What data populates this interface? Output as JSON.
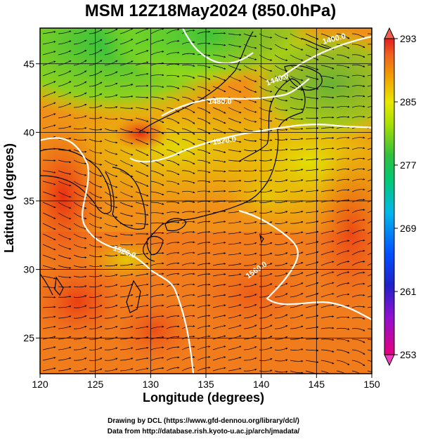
{
  "title": "MSM 12Z18May2024 (850.0hPa)",
  "xlabel": "Longitude (degrees)",
  "ylabel": "Latitude  (degrees)",
  "credits": {
    "line1": "Drawing by DCL (https://www.gfd-dennou.org/library/dcl/)",
    "line2": "Data from http://database.rish.kyoto-u.ac.jp/arch/jmadata/"
  },
  "chart_data": {
    "type": "heatmap",
    "title": "MSM 12Z18May2024 (850.0hPa)",
    "xlabel": "Longitude (degrees)",
    "ylabel": "Latitude  (degrees)",
    "xlim": [
      120,
      150
    ],
    "ylim": [
      22.4,
      47.6
    ],
    "x_ticks": [
      120,
      125,
      130,
      135,
      140,
      145,
      150
    ],
    "y_ticks": [
      25,
      30,
      35,
      40,
      45
    ],
    "colorbar": {
      "ticks": [
        293,
        285,
        277,
        269,
        261,
        253
      ],
      "range": [
        253,
        293
      ],
      "colors": [
        "#e6007e",
        "#b000c0",
        "#3030d0",
        "#0060ff",
        "#00b0e0",
        "#00d080",
        "#40c040",
        "#a0e000",
        "#e8e800",
        "#f0a000",
        "#f06020",
        "#e03020"
      ]
    },
    "contours": [
      {
        "label": "1480.0"
      },
      {
        "label": "1520.0"
      },
      {
        "label": "1520.0"
      },
      {
        "label": "1560.0"
      },
      {
        "label": "1440.0"
      },
      {
        "label": "1400.0"
      }
    ],
    "field": "temperature (K) with geopotential height contours (m) and streamlines"
  }
}
